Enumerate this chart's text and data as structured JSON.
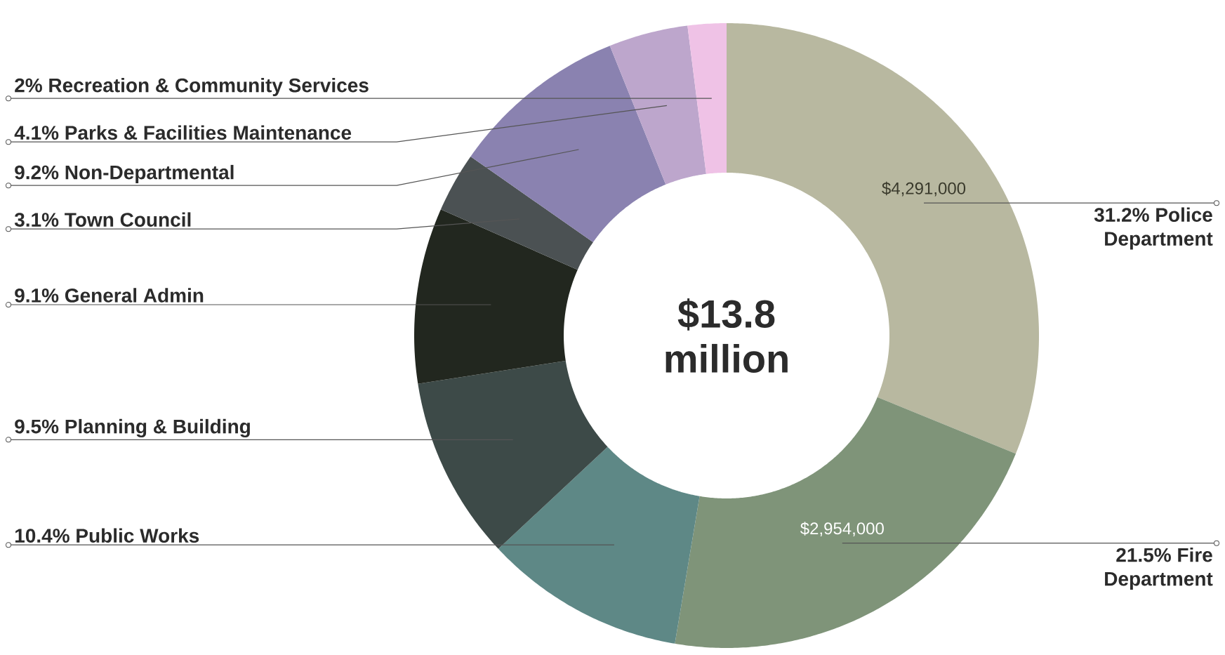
{
  "chart_data": {
    "type": "donut",
    "title": "$13.8 million",
    "categories": [
      "31.2% Police Department",
      "21.5% Fire Department",
      "10.4% Public Works",
      "9.5% Planning & Building",
      "9.1% General Admin",
      "3.1% Town Council",
      "9.2% Non-Departmental",
      "4.1% Parks & Facilities Maintenance",
      "2% Recreation & Community Services"
    ],
    "values": [
      31.2,
      21.5,
      10.4,
      9.5,
      9.1,
      3.1,
      9.2,
      4.1,
      2
    ],
    "colors": [
      "#b8b8a0",
      "#7f9479",
      "#5e8886",
      "#3d4a48",
      "#22271f",
      "#4b5153",
      "#8a82b0",
      "#bda6cc",
      "#efc2e6"
    ],
    "annotations": [
      {
        "text": "$4,291,000",
        "x": "31.2% Police Department"
      },
      {
        "text": "$2,954,000",
        "x": "21.5% Fire Department"
      }
    ]
  }
}
